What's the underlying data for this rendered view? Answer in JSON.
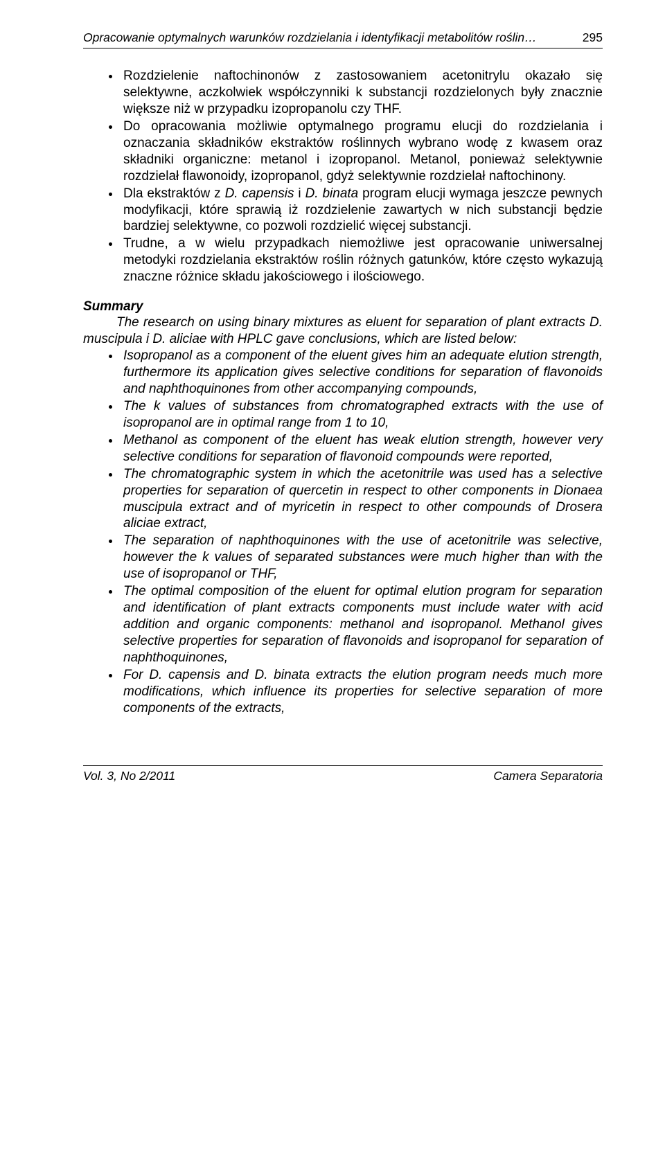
{
  "header": {
    "title": "Opracowanie optymalnych warunków rozdzielania i identyfikacji metabolitów roślin…",
    "page": "295"
  },
  "bullets_pl": [
    "Rozdzielenie naftochinonów z zastosowaniem acetonitrylu okazało się selektywne, aczkolwiek współczynniki k substancji rozdzielonych były znacznie większe niż w przypadku izopropanolu czy THF.",
    "Do opracowania możliwie optymalnego programu elucji do rozdzielania i oznaczania składników ekstraktów roślinnych wybrano wodę z kwasem oraz składniki organiczne: metanol i izopropanol. Metanol, ponieważ selektywnie rozdzielał flawonoidy, izopropanol, gdyż selektywnie rozdzielał naftochinony."
  ],
  "bullet_pl_3_pre": "Dla ekstraktów z ",
  "bullet_pl_3_it1": "D. capensis",
  "bullet_pl_3_mid": " i ",
  "bullet_pl_3_it2": "D. binata",
  "bullet_pl_3_post": " program elucji wymaga jeszcze pewnych modyfikacji, które sprawią iż rozdzielenie zawartych w nich substancji będzie bardziej selektywne, co pozwoli rozdzielić więcej substancji.",
  "bullet_pl_4": "Trudne, a w wielu przypadkach niemożliwe jest opracowanie uniwersalnej metodyki rozdzielania ekstraktów roślin różnych gatunków, które często wykazują znaczne różnice składu jakościowego i ilościowego.",
  "summary_heading": "Summary",
  "summary_lead": "The research on using binary mixtures as eluent for separation of plant extracts D. muscipula i D. aliciae with HPLC gave conclusions, which are listed below:",
  "bullets_en": [
    "Isopropanol as a component of the eluent gives him an adequate elution strength, furthermore its application gives selective conditions for separation of flavonoids and naphthoquinones from other accompanying compounds,",
    "The k values of substances from chromatographed extracts with the use of isopropanol are in optimal range from 1 to 10,",
    "Methanol as component of the eluent has weak elution strength, however very selective conditions for separation of flavonoid compounds were reported,",
    "The chromatographic system in which the acetonitrile was used has a selective properties for separation of quercetin in respect to other components in Dionaea muscipula extract and of myricetin in respect to other compounds of Drosera aliciae extract,",
    "The separation of naphthoquinones with the use of acetonitrile was selective, however the k values of separated substances were much higher than with the use of isopropanol or THF,",
    "The optimal composition of the eluent for optimal elution program for separation and identification of plant extracts components must include water with acid addition and organic components: methanol and isopropanol. Methanol gives selective properties for separation of flavonoids and isopropanol for separation of naphthoquinones,",
    "For D. capensis and D. binata extracts the elution program needs much more modifications, which influence its properties for selective separation of more components of the extracts,"
  ],
  "footer": {
    "left": "Vol. 3, No 2/2011",
    "right": "Camera Separatoria"
  }
}
